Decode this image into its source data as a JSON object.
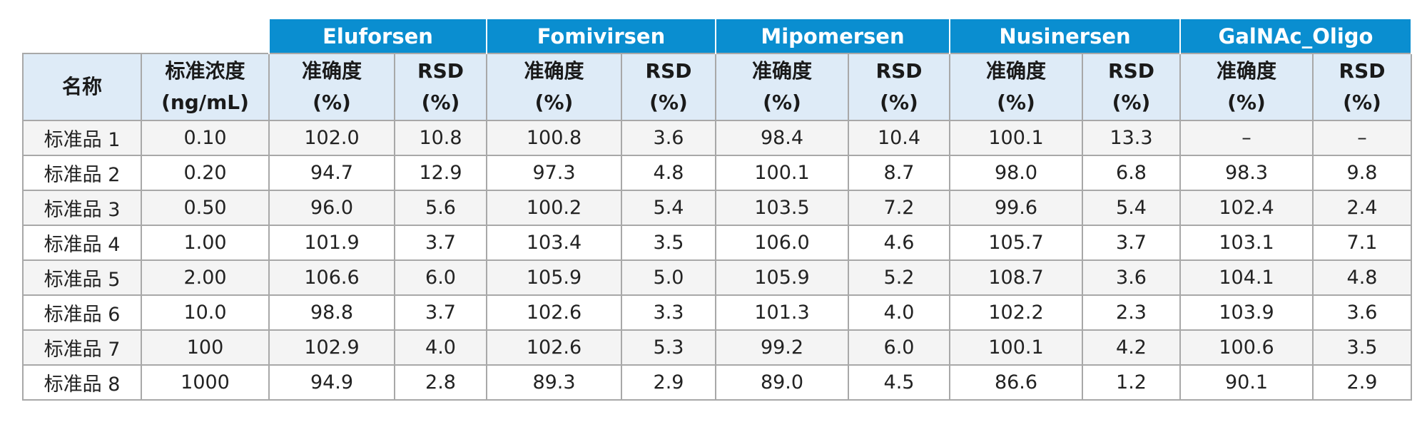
{
  "table": {
    "groups": [
      "Eluforsen",
      "Fomivirsen",
      "Mipomersen",
      "Nusinersen",
      "GalNAc_Oligo"
    ],
    "name_header": "名称",
    "conc_header": [
      "标准浓度",
      "(ng/mL)"
    ],
    "metric_headers": {
      "accuracy": [
        "准确度",
        "(%)"
      ],
      "rsd": [
        "RSD",
        "(%)"
      ]
    },
    "rows": [
      {
        "name": "标准品 1",
        "conc": "0.10",
        "values": [
          "102.0",
          "10.8",
          "100.8",
          "3.6",
          "98.4",
          "10.4",
          "100.1",
          "13.3",
          "–",
          "–"
        ]
      },
      {
        "name": "标准品 2",
        "conc": "0.20",
        "values": [
          "94.7",
          "12.9",
          "97.3",
          "4.8",
          "100.1",
          "8.7",
          "98.0",
          "6.8",
          "98.3",
          "9.8"
        ]
      },
      {
        "name": "标准品 3",
        "conc": "0.50",
        "values": [
          "96.0",
          "5.6",
          "100.2",
          "5.4",
          "103.5",
          "7.2",
          "99.6",
          "5.4",
          "102.4",
          "2.4"
        ]
      },
      {
        "name": "标准品 4",
        "conc": "1.00",
        "values": [
          "101.9",
          "3.7",
          "103.4",
          "3.5",
          "106.0",
          "4.6",
          "105.7",
          "3.7",
          "103.1",
          "7.1"
        ]
      },
      {
        "name": "标准品 5",
        "conc": "2.00",
        "values": [
          "106.6",
          "6.0",
          "105.9",
          "5.0",
          "105.9",
          "5.2",
          "108.7",
          "3.6",
          "104.1",
          "4.8"
        ]
      },
      {
        "name": "标准品 6",
        "conc": "10.0",
        "values": [
          "98.8",
          "3.7",
          "102.6",
          "3.3",
          "101.3",
          "4.0",
          "102.2",
          "2.3",
          "103.9",
          "3.6"
        ]
      },
      {
        "name": "标准品 7",
        "conc": "100",
        "values": [
          "102.9",
          "4.0",
          "102.6",
          "5.3",
          "99.2",
          "6.0",
          "100.1",
          "4.2",
          "100.6",
          "3.5"
        ]
      },
      {
        "name": "标准品 8",
        "conc": "1000",
        "values": [
          "94.9",
          "2.8",
          "89.3",
          "2.9",
          "89.0",
          "4.5",
          "86.6",
          "1.2",
          "90.1",
          "2.9"
        ]
      }
    ]
  }
}
